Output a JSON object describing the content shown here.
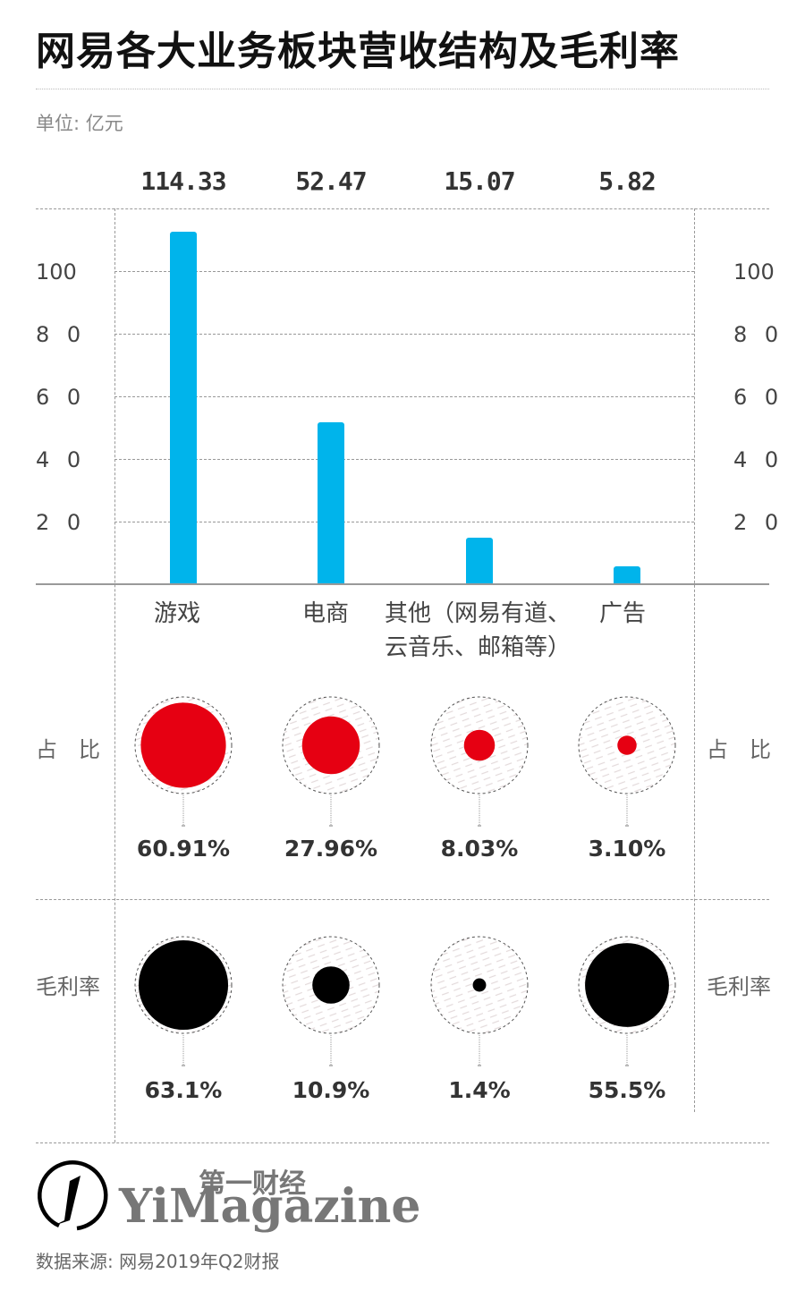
{
  "title": "网易各大业务板块营收结构及毛利率",
  "unit_label": "单位: 亿元",
  "colors": {
    "bar": "#00b4eb",
    "share": "#e60012",
    "margin": "#000000",
    "grid": "#999999"
  },
  "y_ticks": [
    "100",
    "8 0",
    "6 0",
    "4 0",
    "2 0"
  ],
  "categories": [
    {
      "label": "游戏",
      "label2": "",
      "value_label": "114.33",
      "share_label": "60.91%",
      "margin_label": "63.1%"
    },
    {
      "label": "电商",
      "label2": "",
      "value_label": "52.47",
      "share_label": "27.96%",
      "margin_label": "10.9%"
    },
    {
      "label": "其他（网易有道、",
      "label2": "云音乐、邮箱等）",
      "value_label": "15.07",
      "share_label": "8.03%",
      "margin_label": "1.4%"
    },
    {
      "label": "广告",
      "label2": "",
      "value_label": "5.82",
      "share_label": "3.10%",
      "margin_label": "55.5%"
    }
  ],
  "row_labels": {
    "share": "占　比",
    "margin": "毛利率"
  },
  "logo": {
    "cn": "第一财经",
    "en": "YiMagazine",
    "icon": "yimagazine-logo-icon"
  },
  "source": "数据来源: 网易2019年Q2财报",
  "chart_data": [
    {
      "type": "bar",
      "title": "网易各大业务板块营收结构及毛利率",
      "subtitle": "单位: 亿元",
      "categories": [
        "游戏",
        "电商",
        "其他（网易有道、云音乐、邮箱等）",
        "广告"
      ],
      "values": [
        114.33,
        52.47,
        15.07,
        5.82
      ],
      "xlabel": "",
      "ylabel": "亿元",
      "ylim": [
        0,
        120
      ],
      "yticks": [
        20,
        40,
        60,
        80,
        100
      ],
      "grid": true,
      "bar_color": "#00b4eb",
      "data_labels": [
        "114.33",
        "52.47",
        "15.07",
        "5.82"
      ]
    },
    {
      "type": "scatter",
      "title": "占比",
      "categories": [
        "游戏",
        "电商",
        "其他（网易有道、云音乐、邮箱等）",
        "广告"
      ],
      "values": [
        60.91,
        27.96,
        8.03,
        3.1
      ],
      "unit": "%",
      "marker": "proportional circle",
      "color": "#e60012"
    },
    {
      "type": "scatter",
      "title": "毛利率",
      "categories": [
        "游戏",
        "电商",
        "其他（网易有道、云音乐、邮箱等）",
        "广告"
      ],
      "values": [
        63.1,
        10.9,
        1.4,
        55.5
      ],
      "unit": "%",
      "marker": "proportional circle",
      "color": "#000000"
    }
  ]
}
